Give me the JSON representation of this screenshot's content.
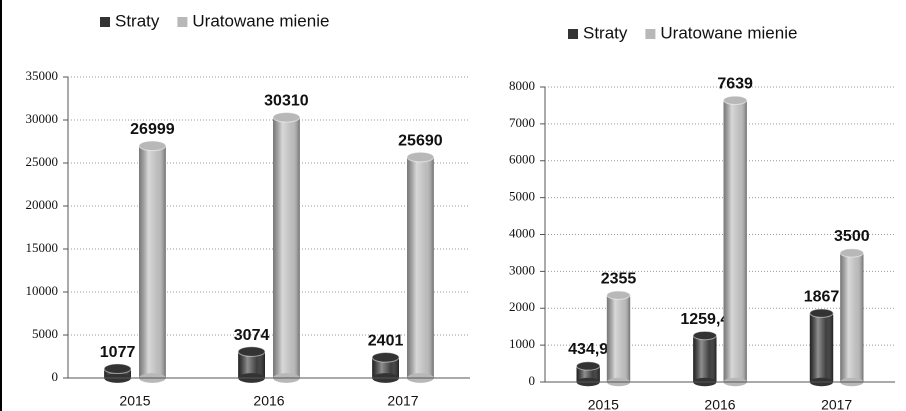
{
  "chart_data": [
    {
      "type": "bar",
      "categories": [
        "2015",
        "2016",
        "2017"
      ],
      "series": [
        {
          "name": "Straty",
          "color": "#333333",
          "values": [
            1077,
            3074,
            2401
          ]
        },
        {
          "name": "Uratowane mienie",
          "color": "#b8b8b8",
          "values": [
            26999,
            30310,
            25690
          ]
        }
      ],
      "ylim": [
        0,
        35000
      ],
      "yticks": [
        0,
        5000,
        10000,
        15000,
        20000,
        25000,
        30000,
        35000
      ],
      "grid": true,
      "legend": "top"
    },
    {
      "type": "bar",
      "categories": [
        "2015",
        "2016",
        "2017"
      ],
      "series": [
        {
          "name": "Straty",
          "color": "#333333",
          "values": [
            434.9,
            1259.4,
            1867
          ],
          "value_labels": [
            "434,9",
            "1259,4",
            "1867"
          ]
        },
        {
          "name": "Uratowane mienie",
          "color": "#b8b8b8",
          "values": [
            2355,
            7639,
            3500
          ]
        }
      ],
      "ylim": [
        0,
        8000
      ],
      "yticks": [
        0,
        1000,
        2000,
        3000,
        4000,
        5000,
        6000,
        7000,
        8000
      ],
      "grid": true,
      "legend": "top"
    }
  ]
}
